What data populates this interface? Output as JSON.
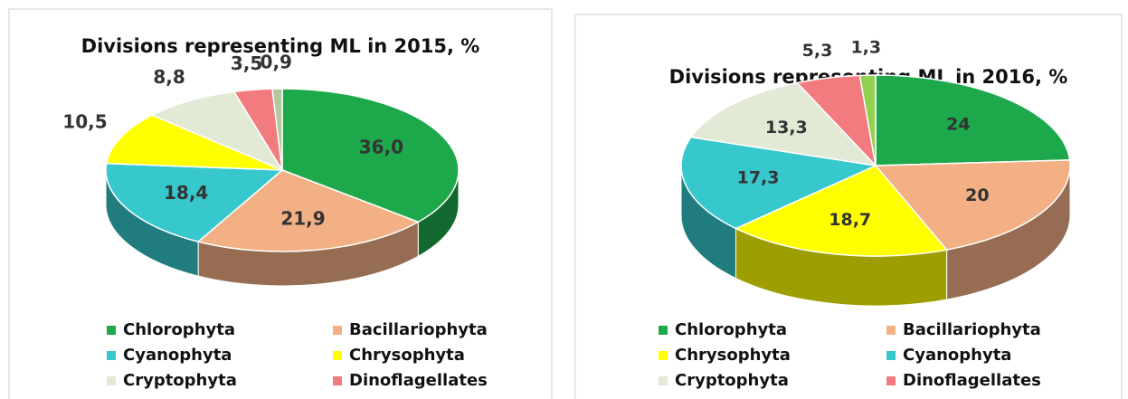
{
  "chart_data": [
    {
      "type": "pie3d",
      "title": "Divisions representing ML in 2015, %",
      "categories": [
        "Chlorophyta",
        "Bacillariophyta",
        "Cyanophyta",
        "Chrysophyta",
        "Cryptophyta",
        "Dinoflagellates",
        null
      ],
      "values": [
        36.0,
        21.9,
        18.4,
        10.5,
        8.8,
        3.5,
        0.9
      ],
      "value_labels": [
        "36,0",
        "21,9",
        "18,4",
        "10,5",
        "8,8",
        "3,5",
        "0,9"
      ],
      "colors": [
        "#1ea84c",
        "#f2b084",
        "#36c8cc",
        "#ffff00",
        "#e2ead6",
        "#f27b80",
        "#b4c89e"
      ]
    },
    {
      "type": "pie3d",
      "title": "Divisions representing ML in 2016, %",
      "categories": [
        "Chlorophyta",
        "Bacillariophyta",
        "Chrysophyta",
        "Cyanophyta",
        "Cryptophyta",
        "Dinoflagellates",
        null
      ],
      "values": [
        24,
        20,
        18.7,
        17.3,
        13.3,
        5.3,
        1.3
      ],
      "value_labels": [
        "24",
        "20",
        "18,7",
        "17,3",
        "13,3",
        "5,3",
        "1,3"
      ],
      "colors": [
        "#1ea84c",
        "#f2b084",
        "#ffff00",
        "#36c8cc",
        "#e2ead6",
        "#f27b80",
        "#92d050"
      ]
    }
  ]
}
